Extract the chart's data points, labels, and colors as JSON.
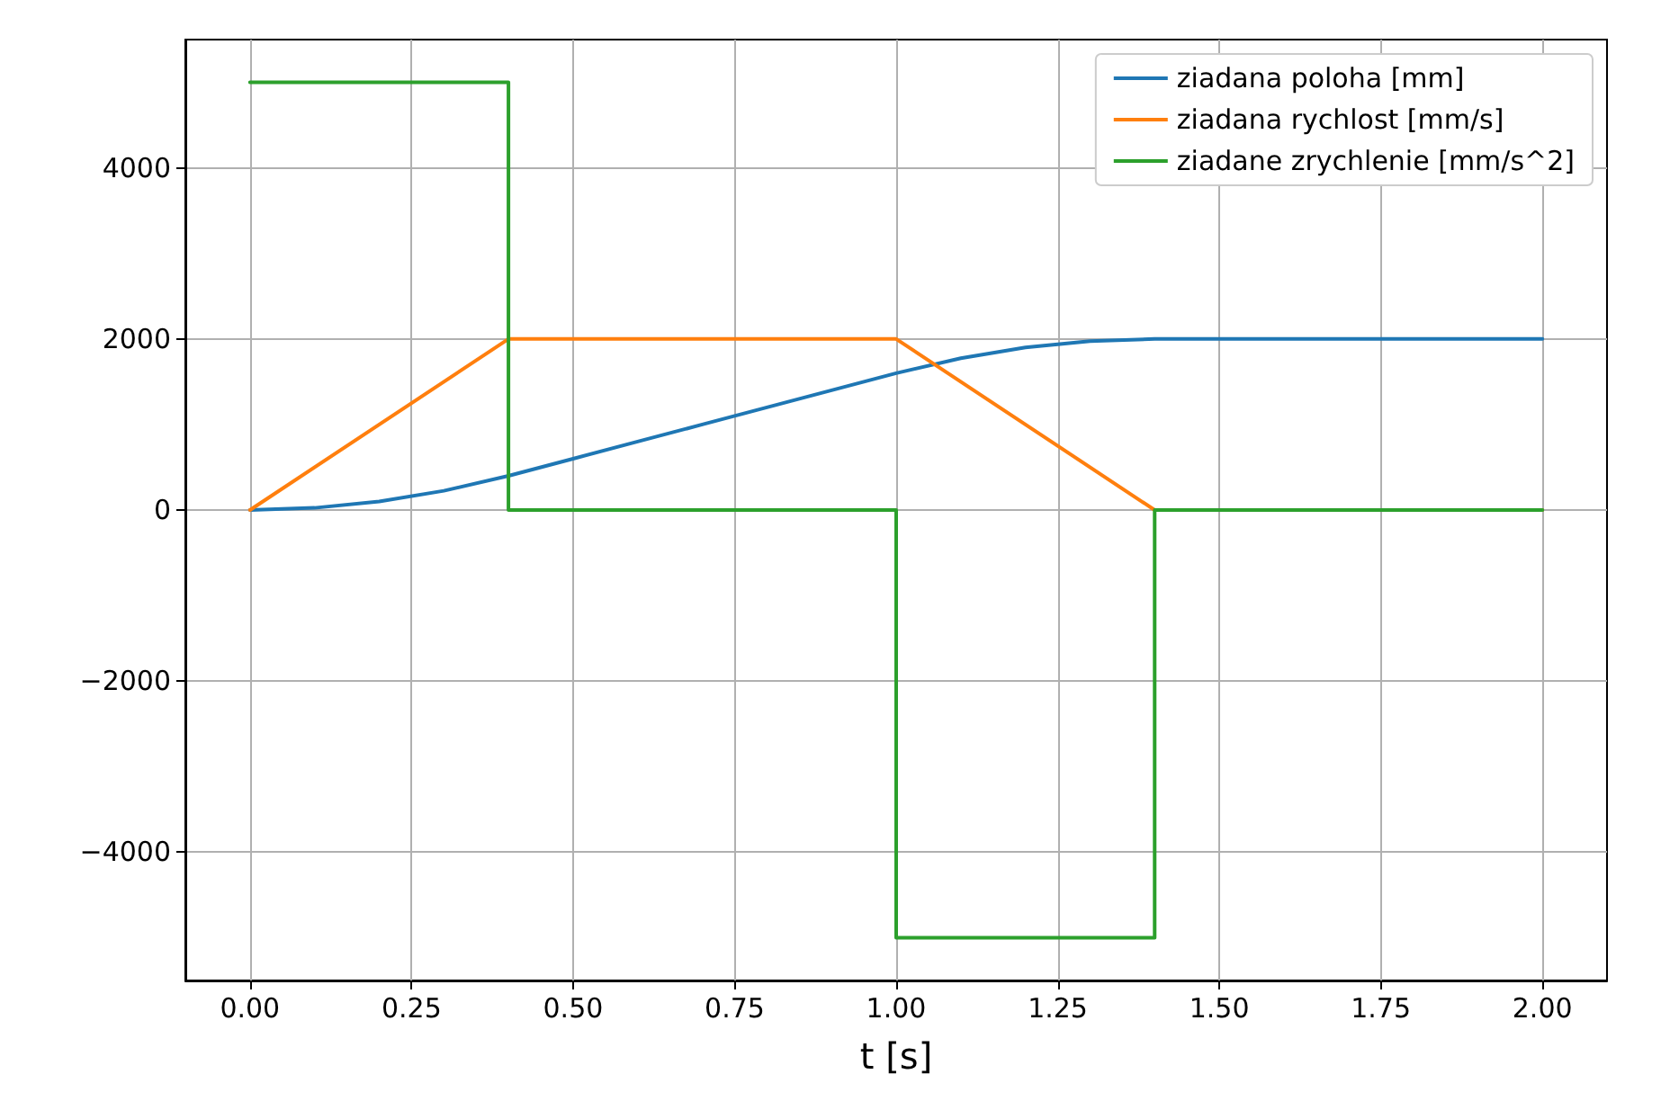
{
  "chart_data": {
    "type": "line",
    "xlabel": "t [s]",
    "series": [
      {
        "name": "ziadana poloha [mm]",
        "color": "#1f77b4",
        "x": [
          0,
          0.1,
          0.2,
          0.3,
          0.4,
          0.5,
          0.6,
          0.7,
          0.8,
          0.9,
          1.0,
          1.1,
          1.2,
          1.3,
          1.4,
          2.0
        ],
        "values": [
          0,
          25,
          100,
          225,
          400,
          600,
          800,
          1000,
          1200,
          1400,
          1600,
          1775,
          1900,
          1975,
          2000,
          2000
        ]
      },
      {
        "name": "ziadana rychlost [mm/s]",
        "color": "#ff7f0e",
        "x": [
          0,
          0.4,
          1.0,
          1.4,
          2.0
        ],
        "values": [
          0,
          2000,
          2000,
          0,
          0
        ]
      },
      {
        "name": "ziadane zrychlenie [mm/s^2]",
        "color": "#2ca02c",
        "x": [
          0,
          0.4,
          0.4,
          1.0,
          1.0,
          1.4,
          1.4,
          2.0
        ],
        "values": [
          5000,
          5000,
          0,
          0,
          -5000,
          -5000,
          0,
          0
        ]
      }
    ],
    "xlim": [
      -0.1,
      2.1
    ],
    "ylim": [
      -5500,
      5500
    ],
    "xticks": [
      {
        "value": 0,
        "label": "0.00"
      },
      {
        "value": 0.25,
        "label": "0.25"
      },
      {
        "value": 0.5,
        "label": "0.50"
      },
      {
        "value": 0.75,
        "label": "0.75"
      },
      {
        "value": 1,
        "label": "1.00"
      },
      {
        "value": 1.25,
        "label": "1.25"
      },
      {
        "value": 1.5,
        "label": "1.50"
      },
      {
        "value": 1.75,
        "label": "1.75"
      },
      {
        "value": 2,
        "label": "2.00"
      }
    ],
    "yticks": [
      {
        "value": -4000,
        "label": "−4000"
      },
      {
        "value": -2000,
        "label": "−2000"
      },
      0,
      2000,
      4000
    ],
    "grid": true,
    "legend": "top right",
    "marker": "none",
    "line_style": "solid"
  }
}
